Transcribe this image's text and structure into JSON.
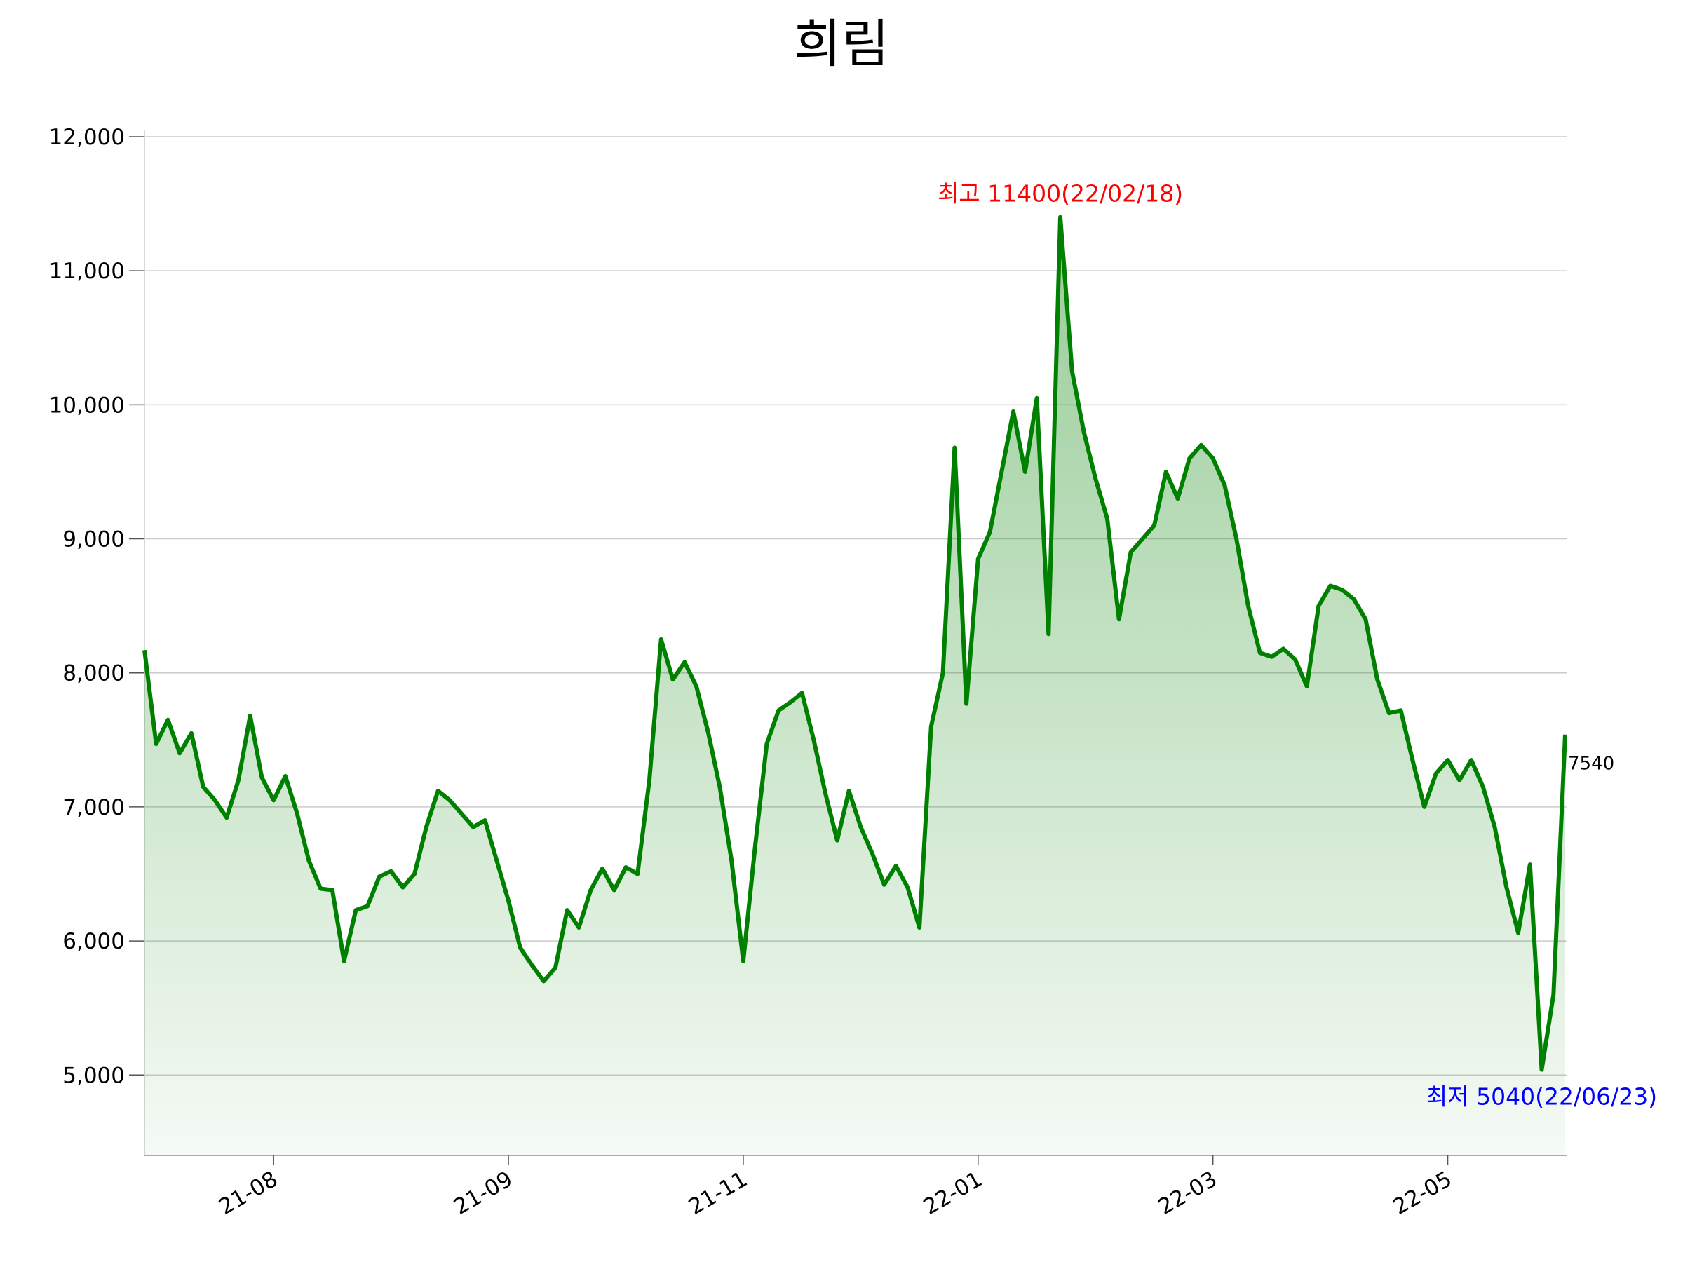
{
  "chart_data": {
    "type": "line",
    "title": "희림",
    "categories": [
      null,
      null,
      null,
      null,
      null,
      null,
      null,
      null,
      null,
      null,
      null,
      "21-08",
      null,
      null,
      null,
      null,
      null,
      null,
      null,
      null,
      null,
      null,
      null,
      null,
      null,
      null,
      null,
      null,
      null,
      null,
      null,
      "21-09",
      null,
      null,
      null,
      null,
      null,
      null,
      null,
      null,
      null,
      null,
      null,
      null,
      null,
      null,
      null,
      null,
      null,
      null,
      null,
      "21-11",
      null,
      null,
      null,
      null,
      null,
      null,
      null,
      null,
      null,
      null,
      null,
      null,
      null,
      null,
      null,
      null,
      null,
      null,
      null,
      "22-01",
      null,
      null,
      null,
      null,
      null,
      null,
      null,
      null,
      null,
      null,
      null,
      null,
      null,
      null,
      null,
      null,
      null,
      null,
      null,
      "22-03",
      null,
      null,
      null,
      null,
      null,
      null,
      null,
      null,
      null,
      null,
      null,
      null,
      null,
      null,
      null,
      null,
      null,
      null,
      null,
      "22-05",
      null,
      null,
      null,
      null,
      null,
      null,
      null,
      null,
      null,
      null
    ],
    "series": [
      {
        "color": "#008000",
        "values": [
          8170,
          7470,
          7650,
          7400,
          7550,
          7150,
          7050,
          6920,
          7200,
          7680,
          7220,
          7050,
          7230,
          6950,
          6600,
          6390,
          6380,
          5850,
          6230,
          6260,
          6480,
          6520,
          6400,
          6500,
          6850,
          7120,
          7050,
          6950,
          6850,
          6900,
          6600,
          6300,
          5950,
          5820,
          5700,
          5800,
          6230,
          6100,
          6380,
          6540,
          6380,
          6550,
          6500,
          7200,
          8250,
          7950,
          8080,
          7900,
          7560,
          7150,
          6600,
          5850,
          6700,
          7470,
          7720,
          7780,
          7850,
          7500,
          7100,
          6750,
          7120,
          6850,
          6650,
          6420,
          6560,
          6400,
          6100,
          7600,
          8000,
          9680,
          7770,
          8850,
          9050,
          9500,
          9950,
          9500,
          10050,
          8290,
          11400,
          10250,
          9800,
          9450,
          9150,
          8400,
          8900,
          9000,
          9100,
          9500,
          9300,
          9600,
          9700,
          9600,
          9400,
          9000,
          8500,
          8150,
          8120,
          8180,
          8100,
          7900,
          8500,
          8650,
          8620,
          8550,
          8400,
          7950,
          7700,
          7720,
          7350,
          7000,
          7250,
          7350,
          7200,
          7350,
          7150,
          6850,
          6400,
          6060,
          6570,
          5040,
          5600,
          7540
        ]
      }
    ],
    "ylim": [
      4400,
      12000
    ],
    "yticks": [
      {
        "value": 5000,
        "label": "5,000"
      },
      {
        "value": 6000,
        "label": "6,000"
      },
      {
        "value": 7000,
        "label": "7,000"
      },
      {
        "value": 8000,
        "label": "8,000"
      },
      {
        "value": 9000,
        "label": "9,000"
      },
      {
        "value": 10000,
        "label": "10,000"
      },
      {
        "value": 11000,
        "label": "11,000"
      },
      {
        "value": 12000,
        "label": "12,000"
      }
    ],
    "grid": true,
    "annotations": [
      {
        "text": "최고 11400(22/02/18)",
        "color": "#ff0000"
      },
      {
        "text": "최저 5040(22/06/23)",
        "color": "#0000ff"
      },
      {
        "text": "7540",
        "color": "#000000"
      }
    ]
  }
}
